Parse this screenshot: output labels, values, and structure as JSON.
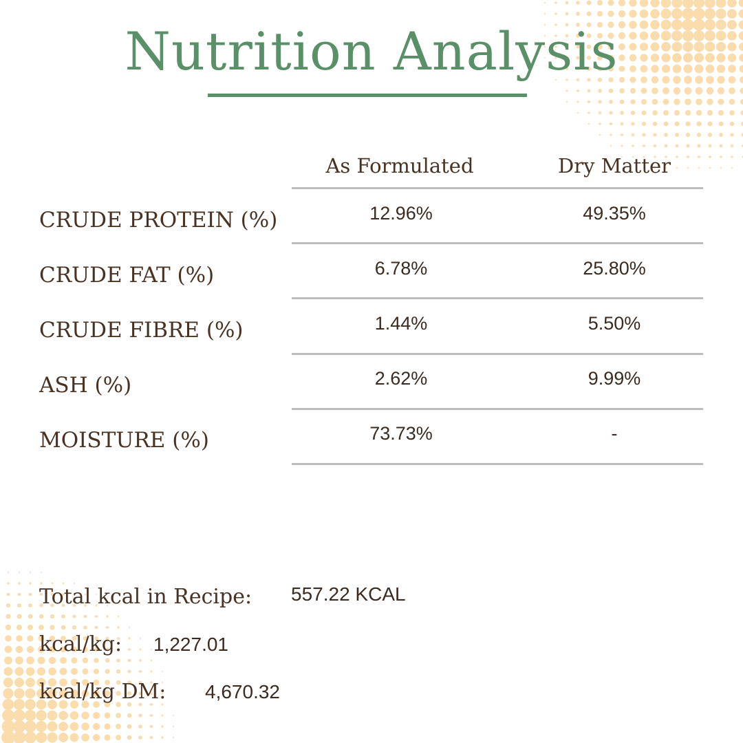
{
  "title": "Nutrition Analysis",
  "columns": [
    "As Formulated",
    "Dry Matter"
  ],
  "rows": [
    {
      "label": "CRUDE PROTEIN (%)",
      "as_formulated": "12.96%",
      "dry_matter": "49.35%"
    },
    {
      "label": "CRUDE FAT (%)",
      "as_formulated": "6.78%",
      "dry_matter": "25.80%"
    },
    {
      "label": "CRUDE FIBRE (%)",
      "as_formulated": "1.44%",
      "dry_matter": "5.50%"
    },
    {
      "label": "ASH (%)",
      "as_formulated": "2.62%",
      "dry_matter": "9.99%"
    },
    {
      "label": "MOISTURE (%)",
      "as_formulated": "73.73%",
      "dry_matter": "-"
    }
  ],
  "summary": {
    "total_label": "Total kcal in Recipe:",
    "total_value": "557.22 KCAL",
    "kcal_kg_label": "kcal/kg:",
    "kcal_kg_value": "1,227.01",
    "kcal_kg_dm_label": "kcal/kg DM:",
    "kcal_kg_dm_value": "4,670.32"
  },
  "colors": {
    "title_green": "#5a9068",
    "text_brown": "#4a3223",
    "rule_gray": "#bdbdbd",
    "dot_peach": "#fbdcad"
  }
}
